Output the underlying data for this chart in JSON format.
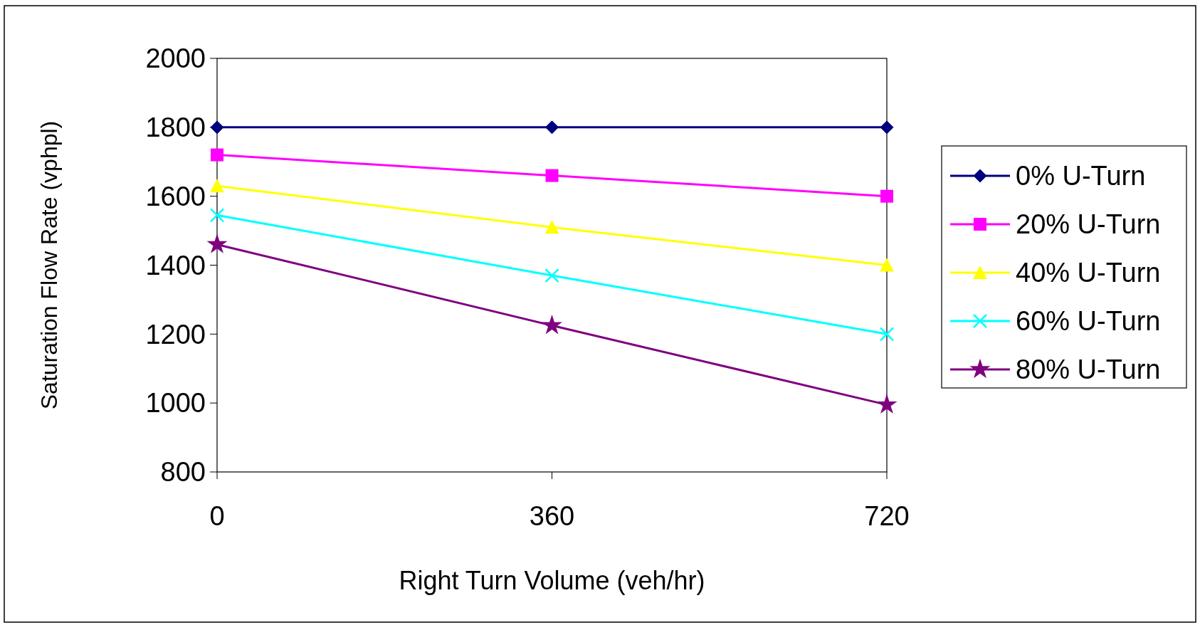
{
  "chart_data": {
    "type": "line",
    "xlabel": "Right Turn Volume (veh/hr)",
    "ylabel": "Saturation Flow Rate (vphpl)",
    "categories": [
      "0",
      "360",
      "720"
    ],
    "ylim": [
      800,
      2000
    ],
    "yticks": [
      800,
      1000,
      1200,
      1400,
      1600,
      1800,
      2000
    ],
    "grid": false,
    "legend": "right",
    "line_style": "solid",
    "series": [
      {
        "name": "0% U-Turn",
        "color": "#000080",
        "marker": "diamond",
        "values": [
          1800,
          1800,
          1800
        ]
      },
      {
        "name": "20% U-Turn",
        "color": "#ff00ff",
        "marker": "square",
        "values": [
          1720,
          1660,
          1600
        ]
      },
      {
        "name": "40% U-Turn",
        "color": "#ffff00",
        "marker": "triangle",
        "values": [
          1630,
          1510,
          1400
        ]
      },
      {
        "name": "60% U-Turn",
        "color": "#00ffff",
        "marker": "cross",
        "values": [
          1545,
          1370,
          1200
        ]
      },
      {
        "name": "80% U-Turn",
        "color": "#800080",
        "marker": "star",
        "values": [
          1460,
          1225,
          995
        ]
      }
    ]
  }
}
